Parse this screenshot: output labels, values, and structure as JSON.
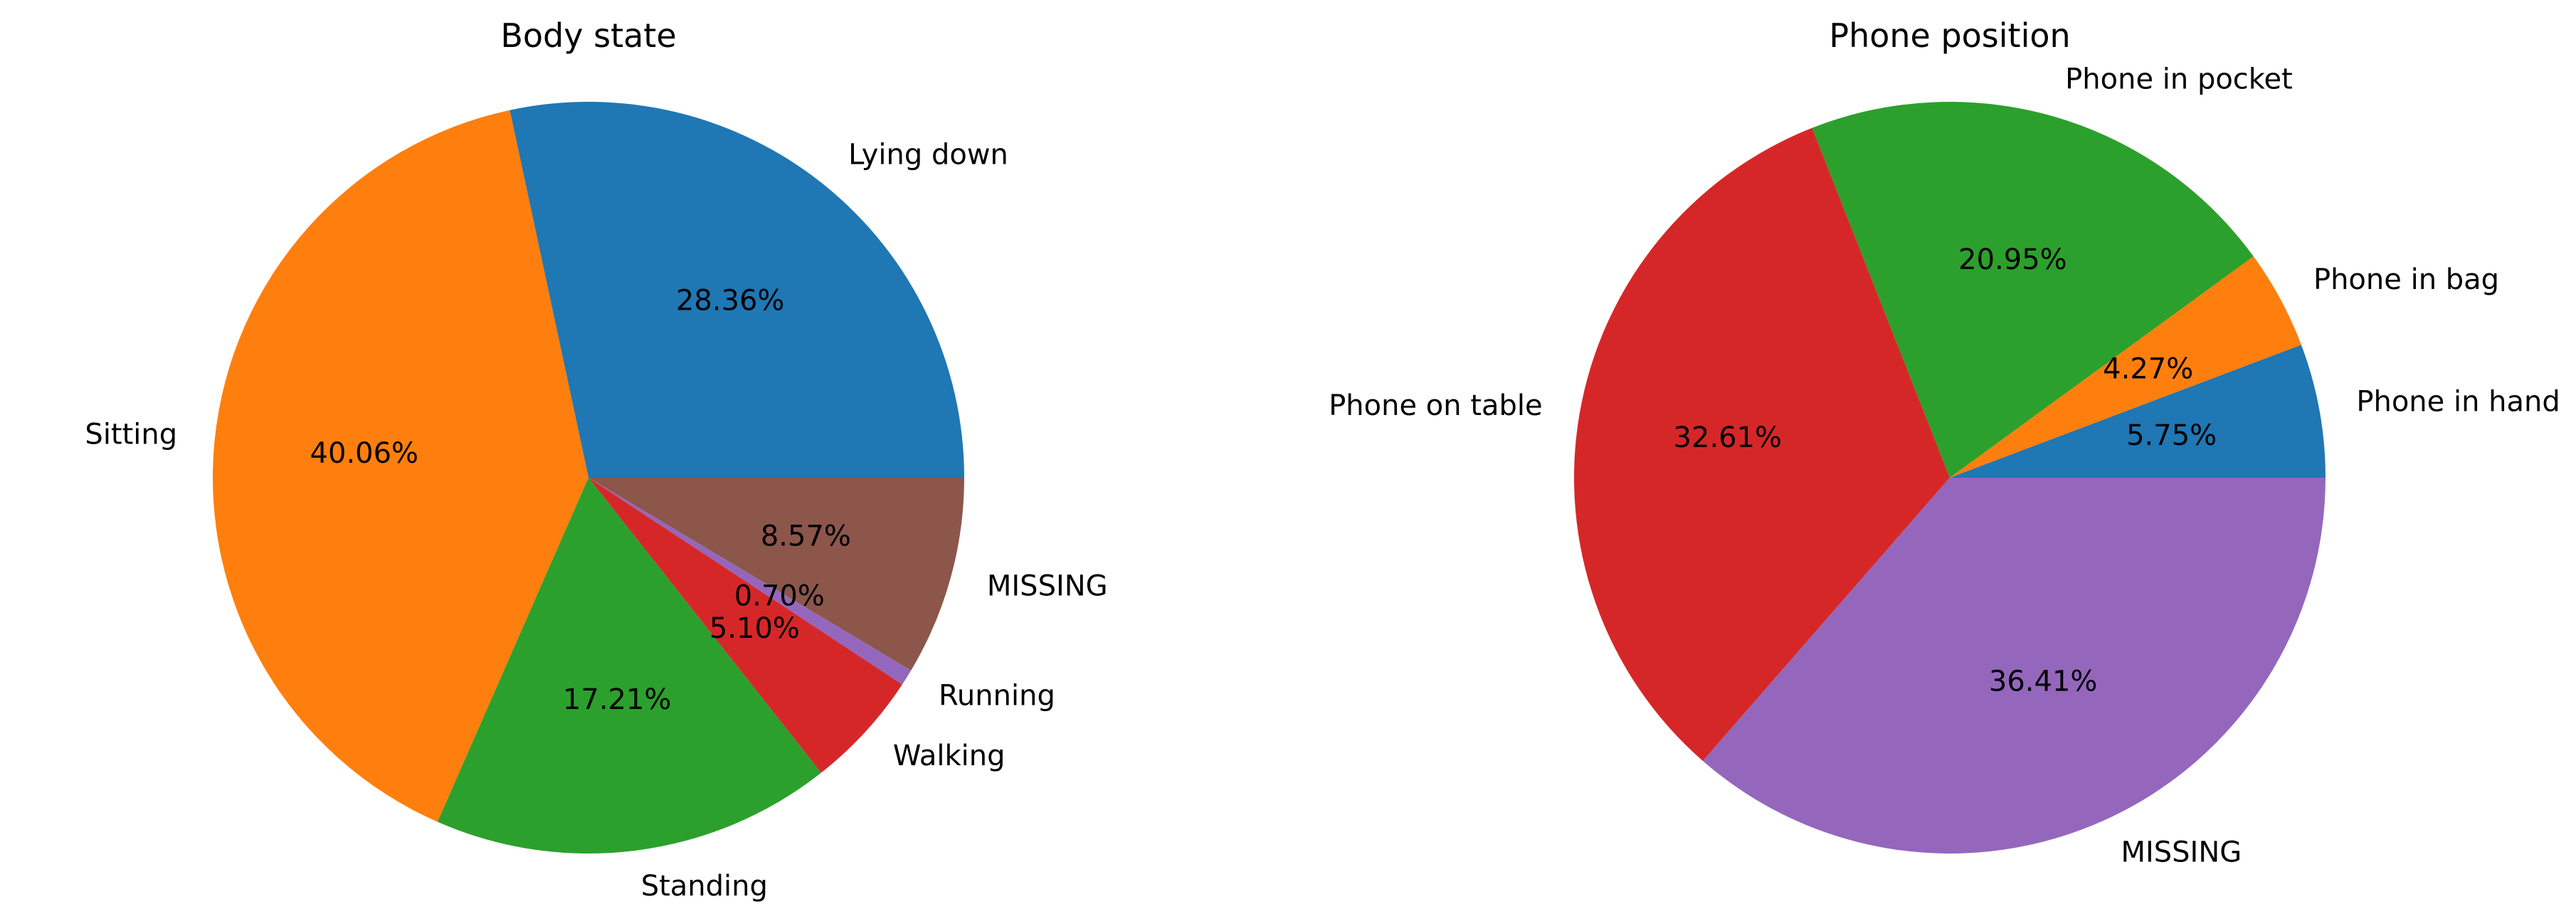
{
  "chart_data": [
    {
      "type": "pie",
      "title": "Body state",
      "labels": [
        "Lying down",
        "Sitting",
        "Standing",
        "Walking",
        "Running",
        "MISSING"
      ],
      "values": [
        28.36,
        40.06,
        17.21,
        5.1,
        0.7,
        8.57
      ],
      "pct_labels": [
        "28.36%",
        "40.06%",
        "17.21%",
        "5.10%",
        "0.70%",
        "8.57%"
      ],
      "colors": [
        "#1f77b4",
        "#ff7f0e",
        "#2ca02c",
        "#d62728",
        "#9467bd",
        "#8c564b"
      ],
      "start_angle_deg": 0,
      "direction": "counterclockwise",
      "legend": "none"
    },
    {
      "type": "pie",
      "title": "Phone position",
      "labels": [
        "Phone in hand",
        "Phone in bag",
        "Phone in pocket",
        "Phone on table",
        "MISSING"
      ],
      "values": [
        5.75,
        4.27,
        20.95,
        32.61,
        36.41
      ],
      "pct_labels": [
        "5.75%",
        "4.27%",
        "20.95%",
        "32.61%",
        "36.41%"
      ],
      "colors": [
        "#1f77b4",
        "#ff7f0e",
        "#2ca02c",
        "#d62728",
        "#9467bd"
      ],
      "start_angle_deg": 0,
      "direction": "counterclockwise",
      "legend": "none"
    }
  ]
}
